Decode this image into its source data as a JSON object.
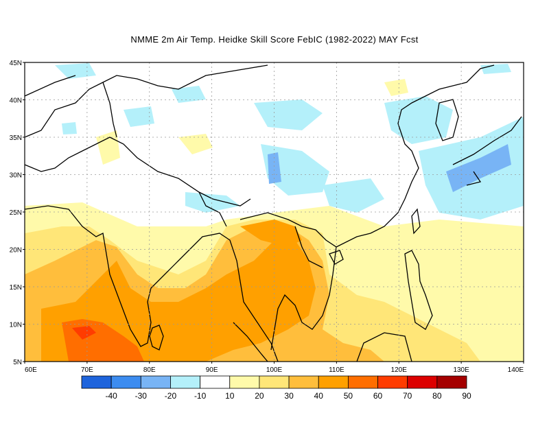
{
  "title": "NMME  2m Air Temp. Heidke Skill Score FebIC (1982-2022) MAY Fcst",
  "map": {
    "lon_range": [
      60,
      140
    ],
    "lat_range": [
      5,
      45
    ],
    "lon_ticks": [
      "60E",
      "70E",
      "80E",
      "90E",
      "100E",
      "110E",
      "120E",
      "130E",
      "140E"
    ],
    "lat_ticks": [
      "5N",
      "10N",
      "15N",
      "20N",
      "25N",
      "30N",
      "35N",
      "40N",
      "45N"
    ],
    "grid": true
  },
  "colorbar": {
    "colors": [
      "#1e64dc",
      "#3c8cf0",
      "#78b4f5",
      "#b4f0fa",
      "#ffffff",
      "#fffaaa",
      "#ffe678",
      "#ffbe3c",
      "#ffa000",
      "#ff6e00",
      "#ff3c00",
      "#dc0000",
      "#a50000"
    ],
    "labels": [
      "-40",
      "-30",
      "-20",
      "-10",
      "10",
      "20",
      "30",
      "40",
      "50",
      "60",
      "70",
      "80",
      "90"
    ]
  },
  "colors": {
    "coast": "#000000",
    "grid": "#999999"
  }
}
